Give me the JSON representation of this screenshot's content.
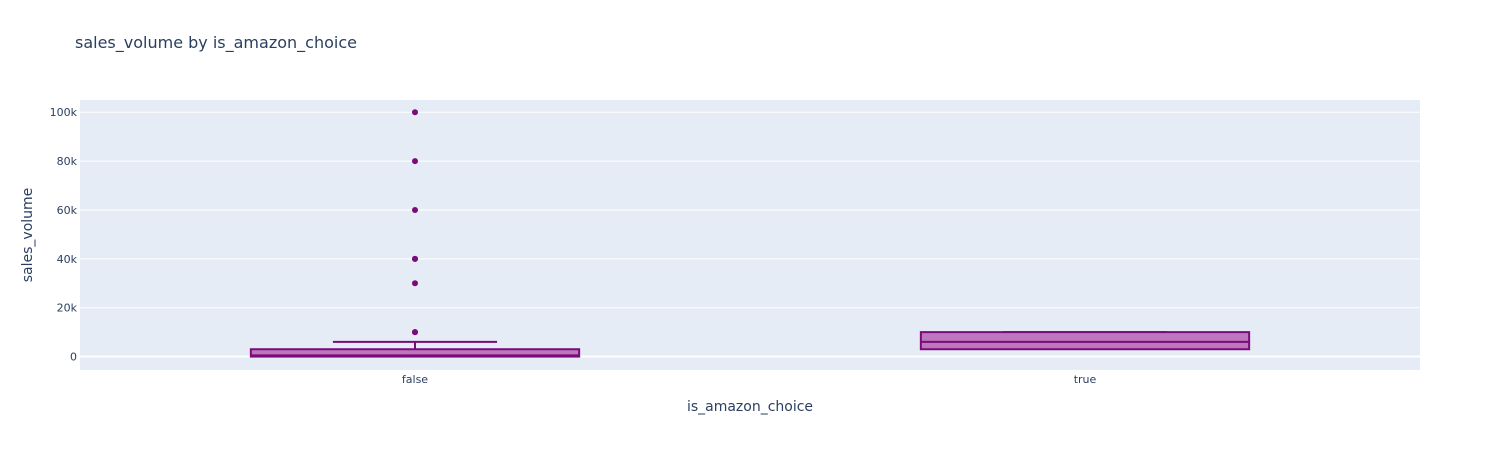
{
  "chart_data": {
    "type": "box",
    "title": "sales_volume by is_amazon_choice",
    "xlabel": "is_amazon_choice",
    "ylabel": "sales_volume",
    "categories": [
      "false",
      "true"
    ],
    "ylim": [
      -5500,
      105000
    ],
    "y_ticks": [
      0,
      20000,
      40000,
      60000,
      80000,
      100000
    ],
    "y_tick_labels": [
      "0",
      "20k",
      "40k",
      "60k",
      "80k",
      "100k"
    ],
    "boxes": [
      {
        "category": "false",
        "q1": 0,
        "median": 500,
        "q3": 3000,
        "lower_whisker": 0,
        "upper_whisker": 6000,
        "outliers": [
          10000,
          10000,
          30000,
          40000,
          40000,
          60000,
          80000,
          100000
        ]
      },
      {
        "category": "true",
        "q1": 3000,
        "median": 6000,
        "q3": 10000,
        "lower_whisker": 3000,
        "upper_whisker": 10000,
        "outliers": []
      }
    ],
    "grid": true,
    "colors": {
      "plot_bg": "#e5ecf6",
      "grid": "#ffffff",
      "box_line": "#7b0a7b",
      "box_fill": "#bd77bd",
      "text": "#2a3f5f"
    }
  }
}
